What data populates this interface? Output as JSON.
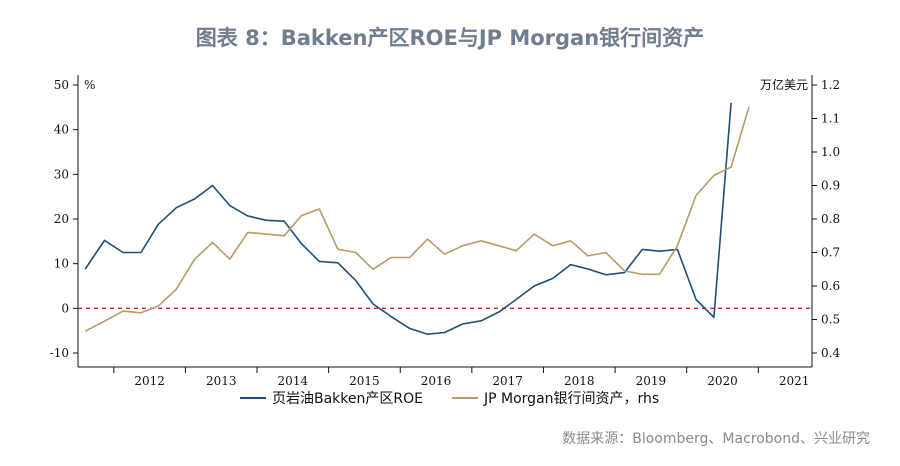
{
  "header": {
    "title": "图表 8：Bakken产区ROE与JP Morgan银行间资产"
  },
  "footer": {
    "source": "数据来源：Bloomberg、Macrobond、兴业研究"
  },
  "chart_data": {
    "type": "line",
    "left_unit": "%",
    "right_unit": "万亿美元",
    "left_ylim": [
      -10,
      50
    ],
    "left_ticks": [
      -10,
      0,
      10,
      20,
      30,
      40,
      50
    ],
    "right_ylim": [
      0.4,
      1.2
    ],
    "right_ticks": [
      "0.4",
      "0.5",
      "0.6",
      "0.7",
      "0.8",
      "0.9",
      "1.0",
      "1.1",
      "1.2"
    ],
    "x_range": [
      2011.5,
      2021.75
    ],
    "x_labels": [
      "2012",
      "2013",
      "2014",
      "2015",
      "2016",
      "2017",
      "2018",
      "2019",
      "2020",
      "2021"
    ],
    "zero_line": {
      "value": 0,
      "style": "dashed",
      "color": "#e0262b"
    },
    "series": [
      {
        "name": "页岩油Bakken产区ROE",
        "axis": "left",
        "color": "#1f4e79",
        "points": [
          [
            2011.6,
            8.8
          ],
          [
            2011.87,
            15.2
          ],
          [
            2012.13,
            12.5
          ],
          [
            2012.38,
            12.5
          ],
          [
            2012.62,
            18.8
          ],
          [
            2012.87,
            22.5
          ],
          [
            2013.13,
            24.5
          ],
          [
            2013.38,
            27.5
          ],
          [
            2013.62,
            23.0
          ],
          [
            2013.87,
            20.7
          ],
          [
            2014.13,
            19.7
          ],
          [
            2014.38,
            19.5
          ],
          [
            2014.62,
            14.5
          ],
          [
            2014.87,
            10.5
          ],
          [
            2015.13,
            10.2
          ],
          [
            2015.38,
            6.2
          ],
          [
            2015.62,
            1.0
          ],
          [
            2015.87,
            -1.8
          ],
          [
            2016.13,
            -4.5
          ],
          [
            2016.38,
            -5.8
          ],
          [
            2016.62,
            -5.4
          ],
          [
            2016.87,
            -3.5
          ],
          [
            2017.13,
            -2.8
          ],
          [
            2017.38,
            -0.8
          ],
          [
            2017.62,
            2.0
          ],
          [
            2017.87,
            5.0
          ],
          [
            2018.13,
            6.7
          ],
          [
            2018.38,
            9.8
          ],
          [
            2018.62,
            8.8
          ],
          [
            2018.87,
            7.5
          ],
          [
            2019.13,
            8.0
          ],
          [
            2019.38,
            13.2
          ],
          [
            2019.62,
            12.8
          ],
          [
            2019.87,
            13.2
          ],
          [
            2020.13,
            2.0
          ],
          [
            2020.38,
            -2.0
          ],
          [
            2020.62,
            46.0
          ]
        ]
      },
      {
        "name": "JP Morgan银行间资产，rhs",
        "axis": "right",
        "color": "#b89a6a",
        "points": [
          [
            2011.6,
            0.465
          ],
          [
            2011.87,
            0.495
          ],
          [
            2012.13,
            0.525
          ],
          [
            2012.38,
            0.52
          ],
          [
            2012.62,
            0.54
          ],
          [
            2012.87,
            0.59
          ],
          [
            2013.13,
            0.68
          ],
          [
            2013.38,
            0.73
          ],
          [
            2013.62,
            0.68
          ],
          [
            2013.87,
            0.76
          ],
          [
            2014.13,
            0.755
          ],
          [
            2014.38,
            0.75
          ],
          [
            2014.62,
            0.81
          ],
          [
            2014.87,
            0.83
          ],
          [
            2015.13,
            0.71
          ],
          [
            2015.38,
            0.7
          ],
          [
            2015.62,
            0.65
          ],
          [
            2015.87,
            0.685
          ],
          [
            2016.13,
            0.685
          ],
          [
            2016.38,
            0.74
          ],
          [
            2016.62,
            0.695
          ],
          [
            2016.87,
            0.72
          ],
          [
            2017.13,
            0.735
          ],
          [
            2017.38,
            0.72
          ],
          [
            2017.62,
            0.705
          ],
          [
            2017.87,
            0.755
          ],
          [
            2018.13,
            0.72
          ],
          [
            2018.38,
            0.735
          ],
          [
            2018.62,
            0.69
          ],
          [
            2018.87,
            0.7
          ],
          [
            2019.13,
            0.645
          ],
          [
            2019.38,
            0.635
          ],
          [
            2019.62,
            0.635
          ],
          [
            2019.87,
            0.72
          ],
          [
            2020.13,
            0.87
          ],
          [
            2020.38,
            0.93
          ],
          [
            2020.62,
            0.955
          ],
          [
            2020.87,
            1.135
          ]
        ]
      }
    ],
    "legend": {
      "position": "bottom"
    }
  }
}
